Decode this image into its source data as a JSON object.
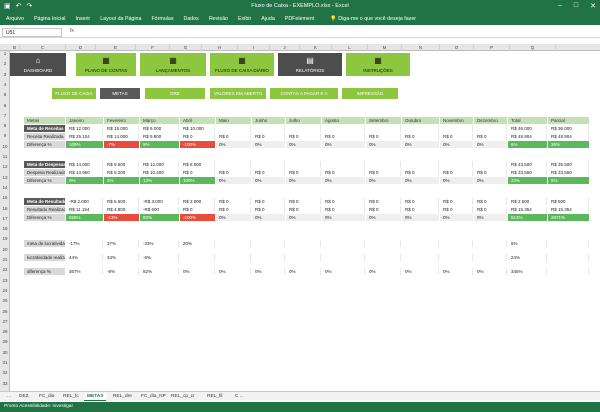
{
  "window": {
    "title": "Fluxo de Caixa - EXEMPLO.xlsx - Excel"
  },
  "menu": [
    "Arquivo",
    "Página Inicial",
    "Inserir",
    "Layout da Página",
    "Fórmulas",
    "Dados",
    "Revisão",
    "Exibir",
    "Ajuda",
    "PDFelement"
  ],
  "tell_me": "Diga-me o que você deseja fazer",
  "name_box": "U51",
  "columns": [
    "B",
    "C",
    "D",
    "E",
    "F",
    "G",
    "H",
    "I",
    "J",
    "K",
    "L",
    "M",
    "N",
    "O",
    "P",
    "Q"
  ],
  "rows": [
    "1",
    "2",
    "3",
    "4",
    "5",
    "6",
    "7",
    "8",
    "9",
    "10",
    "11",
    "12",
    "13",
    "14",
    "15",
    "16",
    "17",
    "18",
    "19",
    "20",
    "21",
    "22",
    "23",
    "24",
    "25",
    "26",
    "27",
    "28",
    "29",
    "30",
    "31",
    "32",
    "33"
  ],
  "nav": [
    {
      "label": "DASHBOARD",
      "icon": "home-icon"
    },
    {
      "label": "PLANO DE CONTAS",
      "icon": "list-icon"
    },
    {
      "label": "LANÇAMENTOS",
      "icon": "edit-icon"
    },
    {
      "label": "FLUXO DE CAIXA DIÁRIO",
      "icon": "cash-icon"
    },
    {
      "label": "RELATÓRIOS",
      "icon": "report-icon"
    },
    {
      "label": "INSTRUÇÕES",
      "icon": "book-icon"
    }
  ],
  "subtabs": [
    "FLUXO DE CAIXA",
    "METAS",
    "DRE",
    "VALORES EM ABERTO",
    "CONTAS A PAGAR E A RECEBER",
    "IMPRESSÃO"
  ],
  "table_header": [
    "Metas",
    "Janeiro",
    "Fevereiro",
    "Março",
    "Abril",
    "Maio",
    "Junho",
    "Julho",
    "Agosto",
    "Setembro",
    "Outubro",
    "Novembro",
    "Dezembro",
    "Total",
    "Parcial"
  ],
  "blocks": [
    {
      "rows": [
        {
          "label": "Meta de Receitas",
          "style": "lab",
          "vals": [
            "R$ 12.000",
            "R$ 15.000",
            "R$ 9.000",
            "R$ 10.000",
            "",
            "",
            "",
            "",
            "",
            "",
            "",
            "",
            "R$ 46.000",
            "R$ 36.000"
          ]
        },
        {
          "label": "Receita Realizada",
          "style": "lab2",
          "vals": [
            "R$ 25.104",
            "R$ 14.000",
            "R$ 9.800",
            "R$ 0",
            "R$ 0",
            "R$ 0",
            "R$ 0",
            "R$ 0",
            "R$ 0",
            "R$ 0",
            "R$ 0",
            "R$ 0",
            "R$ 48.904",
            "R$ 48.904"
          ]
        },
        {
          "label": "Diferença %",
          "style": "lab2",
          "vals": [
            "109%",
            "-7%",
            "9%",
            "-100%",
            "0%",
            "0%",
            "0%",
            "0%",
            "0%",
            "0%",
            "0%",
            "0%",
            "6%",
            "36%"
          ],
          "colors": [
            "grn",
            "red",
            "grn",
            "red",
            "gry",
            "gry",
            "gry",
            "gry",
            "gry",
            "gry",
            "gry",
            "gry",
            "grn",
            "grn"
          ]
        }
      ]
    },
    {
      "rows": [
        {
          "label": "Meta de Despesas",
          "style": "lab",
          "vals": [
            "R$ 14.000",
            "R$ 9.500",
            "R$ 12.000",
            "R$ 8.000",
            "",
            "",
            "",
            "",
            "",
            "",
            "",
            "",
            "R$ 43.500",
            "R$ 35.500"
          ]
        },
        {
          "label": "Despesa Realizada",
          "style": "lab2",
          "vals": [
            "R$ 13.950",
            "R$ 9.200",
            "R$ 10.400",
            "R$ 0",
            "R$ 0",
            "R$ 0",
            "R$ 0",
            "R$ 0",
            "R$ 0",
            "R$ 0",
            "R$ 0",
            "R$ 0",
            "R$ 33.550",
            "R$ 33.550"
          ]
        },
        {
          "label": "Diferença %",
          "style": "lab2",
          "vals": [
            "0%",
            "3%",
            "13%",
            "100%",
            "0%",
            "0%",
            "0%",
            "0%",
            "0%",
            "0%",
            "0%",
            "0%",
            "23%",
            "5%"
          ],
          "colors": [
            "grn",
            "grn",
            "grn",
            "grn",
            "gry",
            "gry",
            "gry",
            "gry",
            "gry",
            "gry",
            "gry",
            "gry",
            "grn",
            "grn"
          ]
        }
      ]
    },
    {
      "rows": [
        {
          "label": "Meta de Resultado",
          "style": "lab",
          "vals": [
            "-R$ 2.000",
            "R$ 5.500",
            "-R$ 3.000",
            "R$ 2.000",
            "R$ 0",
            "R$ 0",
            "R$ 0",
            "R$ 0",
            "R$ 0",
            "R$ 0",
            "R$ 0",
            "R$ 0",
            "R$ 2.500",
            "R$ 500"
          ]
        },
        {
          "label": "Resultado Realizado",
          "style": "lab2",
          "vals": [
            "R$ 11.154",
            "R$ 4.800",
            "-R$ 600",
            "R$ 0",
            "R$ 0",
            "R$ 0",
            "R$ 0",
            "R$ 0",
            "R$ 0",
            "R$ 0",
            "R$ 0",
            "R$ 0",
            "R$ 15.354",
            "R$ 15.354"
          ]
        },
        {
          "label": "Diferença %",
          "style": "lab2",
          "vals": [
            "658%",
            "-13%",
            "80%",
            "-100%",
            "0%",
            "0%",
            "0%",
            "0%",
            "0%",
            "0%",
            "0%",
            "0%",
            "514%",
            "2971%"
          ],
          "colors": [
            "grn",
            "red",
            "grn",
            "red",
            "gry",
            "gry",
            "gry",
            "gry",
            "gry",
            "gry",
            "gry",
            "gry",
            "grn",
            "grn"
          ]
        }
      ]
    },
    {
      "rows": [
        {
          "label": "meta de lucratividade",
          "style": "lab2",
          "vals": [
            "-17%",
            "37%",
            "-33%",
            "20%",
            "",
            "",
            "",
            "",
            "",
            "",
            "",
            "",
            "5%",
            ""
          ]
        },
        {
          "label": "lucratividade realizada",
          "style": "lab2",
          "vals": [
            "44%",
            "34%",
            "-6%",
            "",
            "",
            "",
            "",
            "",
            "",
            "",
            "",
            "",
            "24%",
            ""
          ]
        },
        {
          "label": "diferença %",
          "style": "lab2",
          "vals": [
            "367%",
            "-8%",
            "82%",
            "0%",
            "0%",
            "0%",
            "0%",
            "0%",
            "0%",
            "0%",
            "0%",
            "0%",
            "345%",
            ""
          ]
        }
      ]
    }
  ],
  "sheet_tabs": [
    "...",
    "DEZ",
    "FC_dia",
    "REL_fc",
    "METAS",
    "REL_dre",
    "FC_dia_NP",
    "REL_cp_cr",
    "REL_fil",
    "C ..."
  ],
  "status": "Pronto   Acessibilidade: investigar"
}
